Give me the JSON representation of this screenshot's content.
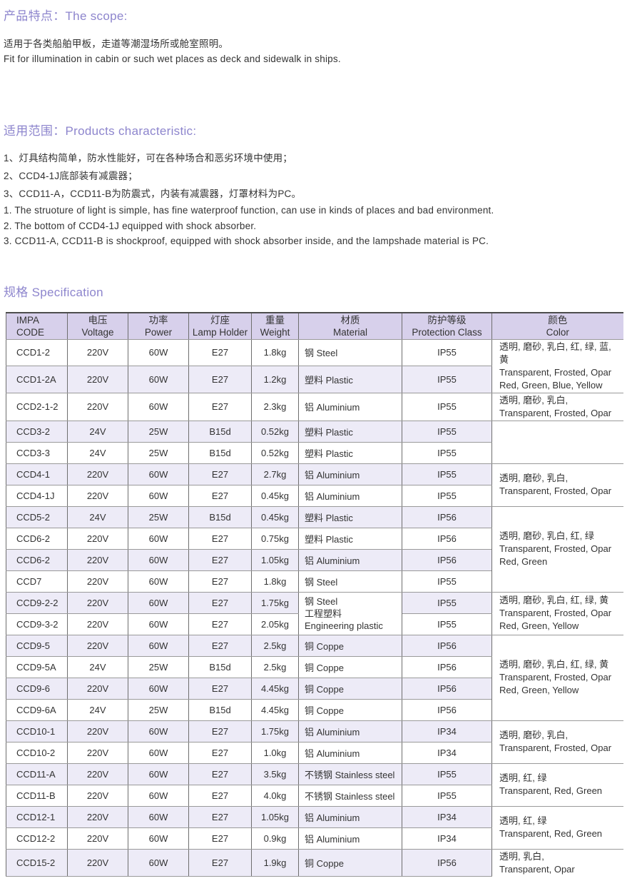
{
  "scope": {
    "heading": "产品特点：The scope:",
    "text_zh": "适用于各类船舶甲板，走道等潮湿场所或舱室照明。",
    "text_en": "Fit for illumination in cabin or such wet places as deck and sidewalk in ships."
  },
  "characteristics": {
    "heading": "适用范围：Products characteristic:",
    "items_zh": [
      "1、灯具结构简单，防水性能好，可在各种场合和恶劣环境中使用；",
      "2、CCD4-1J底部装有减震器；",
      "3、CCD11-A，CCD11-B为防震式，内装有减震器，灯罩材料为PC。"
    ],
    "items_en": [
      "1. The struoture of light is simple, has fine waterproof function, can use in kinds of places and bad environment.",
      "2. The bottom of CCD4-1J equipped with shock absorber.",
      "3. CCD11-A, CCD11-B is shockproof, equipped with shock absorber inside, and the lampshade material is PC."
    ]
  },
  "specification": {
    "heading": "规格 Specification",
    "colors": {
      "accent": "#8d85cd",
      "header_bg": "#d7d0eb",
      "row_alt_bg": "#edebf7"
    },
    "columns": [
      {
        "zh": "IMPA",
        "en": "CODE"
      },
      {
        "zh": "电压",
        "en": "Voltage"
      },
      {
        "zh": "功率",
        "en": "Power"
      },
      {
        "zh": "灯座",
        "en": "Lamp Holder"
      },
      {
        "zh": "重量",
        "en": "Weight"
      },
      {
        "zh": "材质",
        "en": "Material"
      },
      {
        "zh": "防护等级",
        "en": "Protection Class"
      },
      {
        "zh": "颜色",
        "en": "Color"
      }
    ],
    "rows": [
      {
        "code": "CCD1-2",
        "voltage": "220V",
        "power": "60W",
        "lamp": "E27",
        "weight": "1.8kg",
        "material": "钢 Steel",
        "protection": "IP55"
      },
      {
        "code": "CCD1-2A",
        "voltage": "220V",
        "power": "60W",
        "lamp": "E27",
        "weight": "1.2kg",
        "material": "塑料 Plastic",
        "protection": "IP55"
      },
      {
        "code": "CCD2-1-2",
        "voltage": "220V",
        "power": "60W",
        "lamp": "E27",
        "weight": "2.3kg",
        "material": "铝 Aluminium",
        "protection": "IP55"
      },
      {
        "code": "CCD3-2",
        "voltage": "24V",
        "power": "25W",
        "lamp": "B15d",
        "weight": "0.52kg",
        "material": "塑料 Plastic",
        "protection": "IP55"
      },
      {
        "code": "CCD3-3",
        "voltage": "24V",
        "power": "25W",
        "lamp": "B15d",
        "weight": "0.52kg",
        "material": "塑料 Plastic",
        "protection": "IP55"
      },
      {
        "code": "CCD4-1",
        "voltage": "220V",
        "power": "60W",
        "lamp": "E27",
        "weight": "2.7kg",
        "material": "铝 Aluminium",
        "protection": "IP55"
      },
      {
        "code": "CCD4-1J",
        "voltage": "220V",
        "power": "60W",
        "lamp": "E27",
        "weight": "0.45kg",
        "material": "铝 Aluminium",
        "protection": "IP55"
      },
      {
        "code": "CCD5-2",
        "voltage": "24V",
        "power": "25W",
        "lamp": "B15d",
        "weight": "0.45kg",
        "material": "塑料 Plastic",
        "protection": "IP56"
      },
      {
        "code": "CCD6-2",
        "voltage": "220V",
        "power": "60W",
        "lamp": "E27",
        "weight": "0.75kg",
        "material": "塑料 Plastic",
        "protection": "IP56"
      },
      {
        "code": "CCD6-2",
        "voltage": "220V",
        "power": "60W",
        "lamp": "E27",
        "weight": "1.05kg",
        "material": "铝 Aluminium",
        "protection": "IP56"
      },
      {
        "code": "CCD7",
        "voltage": "220V",
        "power": "60W",
        "lamp": "E27",
        "weight": "1.8kg",
        "material": "钢 Steel",
        "protection": "IP55"
      },
      {
        "code": "CCD9-2-2",
        "voltage": "220V",
        "power": "60W",
        "lamp": "E27",
        "weight": "1.75kg",
        "material": "",
        "protection": "IP55"
      },
      {
        "code": "CCD9-3-2",
        "voltage": "220V",
        "power": "60W",
        "lamp": "E27",
        "weight": "2.05kg",
        "material": "",
        "protection": "IP55"
      },
      {
        "code": "CCD9-5",
        "voltage": "220V",
        "power": "60W",
        "lamp": "E27",
        "weight": "2.5kg",
        "material": "铜 Coppe",
        "protection": "IP56"
      },
      {
        "code": "CCD9-5A",
        "voltage": "24V",
        "power": "25W",
        "lamp": "B15d",
        "weight": "2.5kg",
        "material": "铜 Coppe",
        "protection": "IP56"
      },
      {
        "code": "CCD9-6",
        "voltage": "220V",
        "power": "60W",
        "lamp": "E27",
        "weight": "4.45kg",
        "material": "铜 Coppe",
        "protection": "IP56"
      },
      {
        "code": "CCD9-6A",
        "voltage": "24V",
        "power": "25W",
        "lamp": "B15d",
        "weight": "4.45kg",
        "material": "铜 Coppe",
        "protection": "IP56"
      },
      {
        "code": "CCD10-1",
        "voltage": "220V",
        "power": "60W",
        "lamp": "E27",
        "weight": "1.75kg",
        "material": "铝 Aluminium",
        "protection": "IP34"
      },
      {
        "code": "CCD10-2",
        "voltage": "220V",
        "power": "60W",
        "lamp": "E27",
        "weight": "1.0kg",
        "material": "铝 Aluminium",
        "protection": "IP34"
      },
      {
        "code": "CCD11-A",
        "voltage": "220V",
        "power": "60W",
        "lamp": "E27",
        "weight": "3.5kg",
        "material": "不锈钢 Stainless steel",
        "protection": "IP55"
      },
      {
        "code": "CCD11-B",
        "voltage": "220V",
        "power": "60W",
        "lamp": "E27",
        "weight": "4.0kg",
        "material": "不锈钢 Stainless steel",
        "protection": "IP55"
      },
      {
        "code": "CCD12-1",
        "voltage": "220V",
        "power": "60W",
        "lamp": "E27",
        "weight": "1.05kg",
        "material": "铝 Aluminium",
        "protection": "IP34"
      },
      {
        "code": "CCD12-2",
        "voltage": "220V",
        "power": "60W",
        "lamp": "E27",
        "weight": "0.9kg",
        "material": "铝 Aluminium",
        "protection": "IP34"
      },
      {
        "code": "CCD15-2",
        "voltage": "220V",
        "power": "60W",
        "lamp": "E27",
        "weight": "1.9kg",
        "material": "铜 Coppe",
        "protection": "IP56"
      }
    ],
    "material_merges": [
      {
        "start": 11,
        "span": 2,
        "lines": [
          "钢 Steel",
          "工程塑料",
          "Engineering plastic"
        ]
      }
    ],
    "color_groups": [
      {
        "start": 0,
        "span": 2,
        "lines": [
          "透明, 磨砂, 乳白, 红, 绿, 蓝, 黄",
          "Transparent, Frosted, Opar",
          "Red, Green, Blue, Yellow"
        ]
      },
      {
        "start": 2,
        "span": 1,
        "lines": [
          "透明, 磨砂, 乳白,",
          "Transparent, Frosted, Opar"
        ]
      },
      {
        "start": 3,
        "span": 2,
        "lines": []
      },
      {
        "start": 5,
        "span": 2,
        "lines": [
          "透明, 磨砂, 乳白,",
          "Transparent, Frosted, Opar"
        ]
      },
      {
        "start": 7,
        "span": 4,
        "lines": [
          "透明, 磨砂, 乳白, 红, 绿",
          "Transparent, Frosted, Opar",
          "Red, Green"
        ]
      },
      {
        "start": 11,
        "span": 2,
        "lines": [
          "透明, 磨砂, 乳白, 红, 绿, 黄",
          "Transparent, Frosted, Opar",
          "Red, Green, Yellow"
        ]
      },
      {
        "start": 13,
        "span": 4,
        "lines": [
          "透明, 磨砂, 乳白, 红, 绿, 黄",
          "Transparent, Frosted, Opar",
          "Red, Green, Yellow"
        ]
      },
      {
        "start": 17,
        "span": 2,
        "lines": [
          "透明, 磨砂, 乳白,",
          "Transparent, Frosted, Opar"
        ]
      },
      {
        "start": 19,
        "span": 2,
        "lines": [
          "透明, 红, 绿",
          "Transparent, Red, Green"
        ]
      },
      {
        "start": 21,
        "span": 2,
        "lines": [
          "透明, 红, 绿",
          "Transparent, Red, Green"
        ]
      },
      {
        "start": 23,
        "span": 1,
        "lines": [
          "透明, 乳白,",
          "Transparent, Opar"
        ]
      }
    ]
  }
}
